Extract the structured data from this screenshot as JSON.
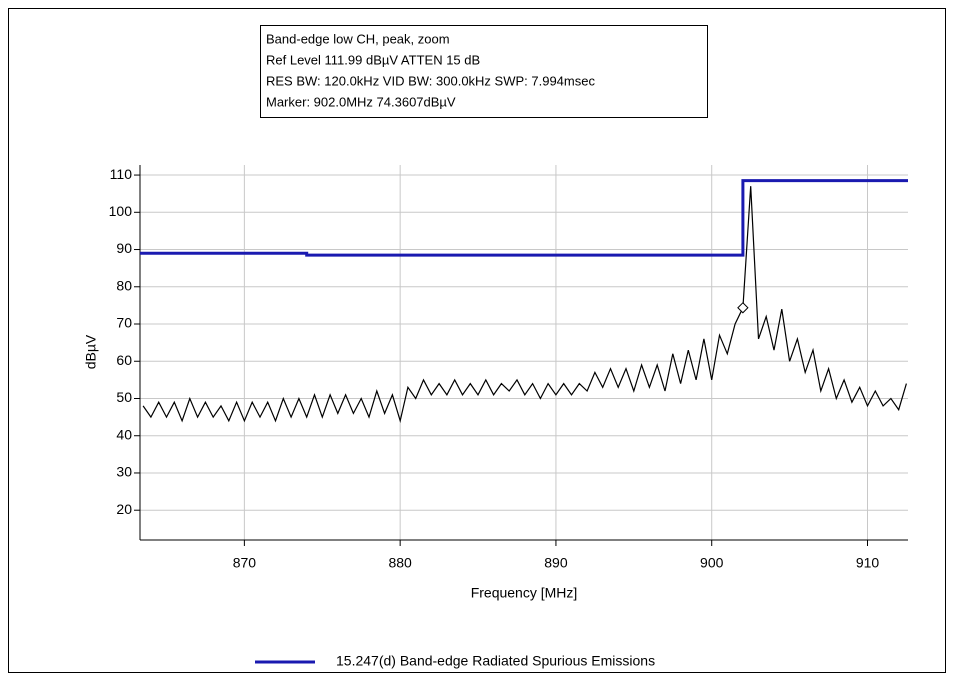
{
  "chart_data": {
    "type": "line",
    "annotations": [
      "Band-edge low CH, peak, zoom",
      "Ref Level 111.99 dBµV    ATTEN 15 dB",
      "RES BW: 120.0kHz  VID BW: 300.0kHz  SWP: 7.994msec",
      "Marker: 902.0MHz  74.3607dBµV"
    ],
    "x_label": "Frequency [MHz]",
    "y_label": "dBµV",
    "xlim": [
      863.3,
      912.6
    ],
    "ylim": [
      12,
      112.7
    ],
    "xticks": [
      870,
      880,
      890,
      900,
      910
    ],
    "yticks": [
      20,
      30,
      40,
      50,
      60,
      70,
      80,
      90,
      100,
      110
    ],
    "grid": true,
    "legend": "bottom",
    "series": [
      {
        "name": "15.247(d) Band-edge Radiated Spurious Emissions",
        "color": "#1a1ab0",
        "x": [
          863.3,
          874,
          874,
          902,
          902,
          912.6
        ],
        "values": [
          89,
          89,
          88.5,
          88.5,
          108.5,
          108.5
        ]
      },
      {
        "color": "#000000",
        "x": [
          863.5,
          864,
          864.5,
          865,
          865.5,
          866,
          866.5,
          867,
          867.5,
          868,
          868.5,
          869,
          869.5,
          870,
          870.5,
          871,
          871.5,
          872,
          872.5,
          873,
          873.5,
          874,
          874.5,
          875,
          875.5,
          876,
          876.5,
          877,
          877.5,
          878,
          878.5,
          879,
          879.5,
          880,
          880.5,
          881,
          881.5,
          882,
          882.5,
          883,
          883.5,
          884,
          884.5,
          885,
          885.5,
          886,
          886.5,
          887,
          887.5,
          888,
          888.5,
          889,
          889.5,
          890,
          890.5,
          891,
          891.5,
          892,
          892.5,
          893,
          893.5,
          894,
          894.5,
          895,
          895.5,
          896,
          896.5,
          897,
          897.5,
          898,
          898.5,
          899,
          899.5,
          900,
          900.5,
          901,
          901.5,
          902,
          902.5,
          903,
          903.5,
          904,
          904.5,
          905,
          905.5,
          906,
          906.5,
          907,
          907.5,
          908,
          908.5,
          909,
          909.5,
          910,
          910.5,
          911,
          911.5,
          912,
          912.5
        ],
        "values": [
          48,
          45,
          49,
          45,
          49,
          44,
          50,
          45,
          49,
          45,
          48,
          44,
          49,
          44,
          49,
          45,
          49,
          44,
          50,
          45,
          50,
          45,
          51,
          45,
          51,
          46,
          51,
          46,
          50,
          45,
          52,
          46,
          51,
          44,
          53,
          50,
          55,
          51,
          54,
          51,
          55,
          51,
          54,
          51,
          55,
          51,
          54,
          52,
          55,
          51,
          54,
          50,
          54,
          51,
          54,
          51,
          54,
          52,
          57,
          53,
          58,
          53,
          58,
          52,
          59,
          53,
          59,
          52,
          62,
          54,
          63,
          55,
          66,
          55,
          67,
          62,
          70,
          74.36,
          107,
          66,
          72,
          63,
          74,
          60,
          66,
          57,
          63,
          52,
          58,
          50,
          55,
          49,
          53,
          48,
          52,
          48,
          50,
          47,
          54
        ]
      }
    ],
    "marker": {
      "x": 902.0,
      "y": 74.3607
    }
  }
}
